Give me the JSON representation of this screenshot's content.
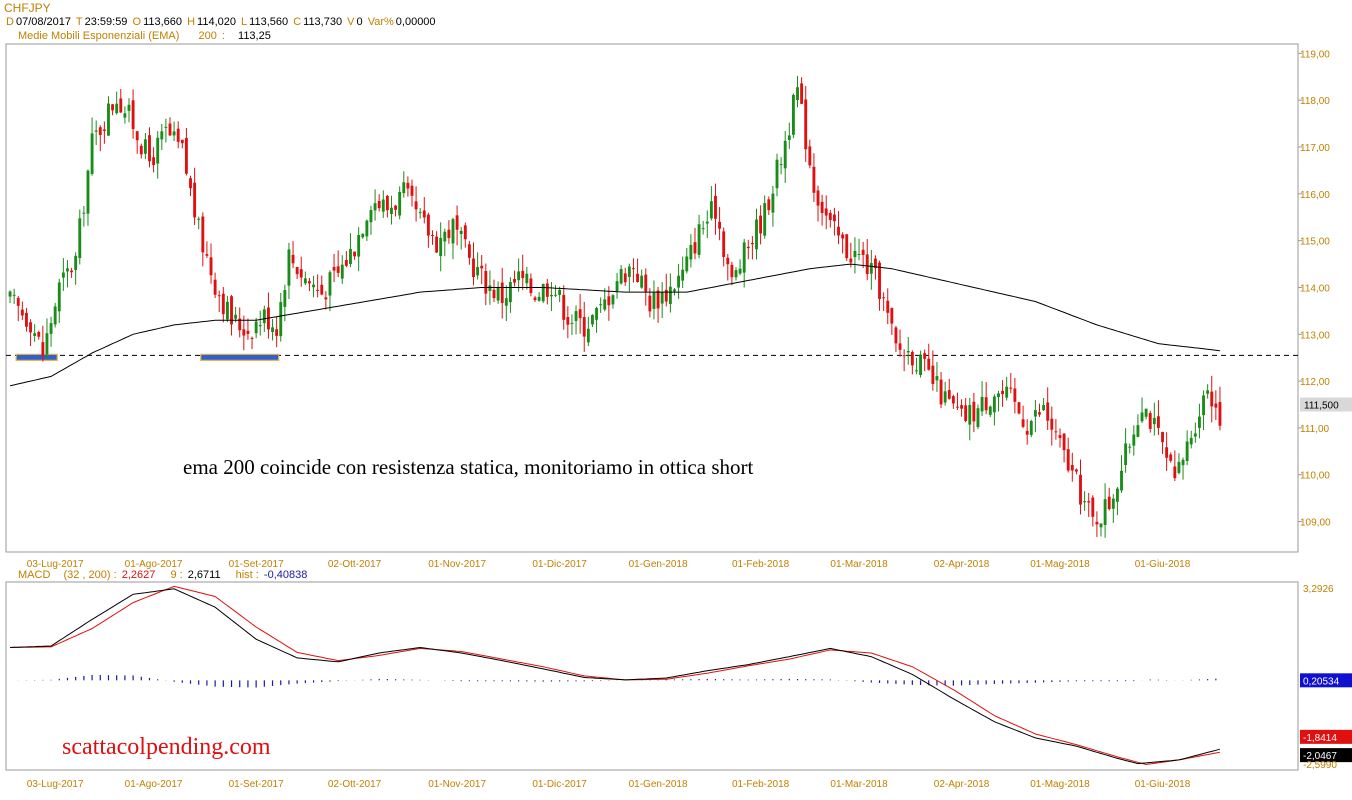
{
  "symbol": "CHFJPY",
  "ohlc_header": {
    "d_label": "D",
    "d_value": "07/08/2017",
    "t_label": "T",
    "t_value": "23:59:59",
    "o_label": "O",
    "o_value": "113,660",
    "h_label": "H",
    "h_value": "114,020",
    "l_label": "L",
    "l_value": "113,560",
    "c_label": "C",
    "c_value": "113,730",
    "v_label": "V",
    "v_value": "0",
    "var_label": "Var%",
    "var_value": "0,00000"
  },
  "ema_header": {
    "label": "Medie Mobili Esponenziali (EMA)",
    "period": "200",
    "sep": ":",
    "value": "113,25"
  },
  "macd_header": {
    "label": "MACD",
    "params": "(32 , 200) :",
    "macd_value": "2,2627",
    "signal_period": "9 :",
    "signal_value": "2,6711",
    "hist_label": "hist :",
    "hist_value": "-0,40838"
  },
  "annotations": {
    "main_note": "ema 200 coincide con resistenza statica, monitoriamo in ottica short",
    "watermark": "scattacolpending.com"
  },
  "colors": {
    "bull": "#1a8c1a",
    "bear": "#e01010",
    "ema": "#000000",
    "macd_line": "#000000",
    "signal_line": "#e01010",
    "histogram": "#1a1a9c",
    "support_box": "#3060d0",
    "support_box_edge": "#e8b040",
    "axis_text": "#c08000",
    "last_price_tag": "#d8d8d8",
    "macd_tag_blue": "#1010d0",
    "macd_tag_red": "#e01010",
    "macd_tag_black": "#000000"
  },
  "chart_data": [
    {
      "type": "candlestick",
      "title": "CHFJPY",
      "x_labels": [
        "03-Lug-2017",
        "01-Ago-2017",
        "01-Set-2017",
        "02-Ott-2017",
        "01-Nov-2017",
        "01-Dic-2017",
        "01-Gen-2018",
        "01-Feb-2018",
        "01-Mar-2018",
        "02-Apr-2018",
        "01-Mag-2018",
        "01-Giu-2018"
      ],
      "ylim": [
        108.35,
        119.2
      ],
      "y_ticks": [
        "119,00",
        "118,00",
        "117,00",
        "116,00",
        "115,00",
        "114,00",
        "113,00",
        "112,00",
        "111,00",
        "110,00",
        "109,00"
      ],
      "last_price": "111,500",
      "resistance_level": 112.55,
      "price_path": [
        {
          "t": 0,
          "p": 113.7
        },
        {
          "t": 5,
          "p": 113.3
        },
        {
          "t": 8,
          "p": 112.6
        },
        {
          "t": 12,
          "p": 114.0
        },
        {
          "t": 16,
          "p": 114.6
        },
        {
          "t": 20,
          "p": 117.1
        },
        {
          "t": 26,
          "p": 118.1
        },
        {
          "t": 30,
          "p": 117.5
        },
        {
          "t": 34,
          "p": 116.7
        },
        {
          "t": 38,
          "p": 117.3
        },
        {
          "t": 42,
          "p": 116.9
        },
        {
          "t": 46,
          "p": 115.2
        },
        {
          "t": 50,
          "p": 114.1
        },
        {
          "t": 54,
          "p": 113.3
        },
        {
          "t": 58,
          "p": 113.1
        },
        {
          "t": 62,
          "p": 113.4
        },
        {
          "t": 65,
          "p": 113.2
        },
        {
          "t": 68,
          "p": 114.7
        },
        {
          "t": 72,
          "p": 114.2
        },
        {
          "t": 76,
          "p": 113.9
        },
        {
          "t": 80,
          "p": 114.3
        },
        {
          "t": 84,
          "p": 114.9
        },
        {
          "t": 88,
          "p": 115.9
        },
        {
          "t": 92,
          "p": 115.7
        },
        {
          "t": 96,
          "p": 116.0
        },
        {
          "t": 100,
          "p": 115.4
        },
        {
          "t": 104,
          "p": 115.0
        },
        {
          "t": 108,
          "p": 115.3
        },
        {
          "t": 112,
          "p": 114.6
        },
        {
          "t": 116,
          "p": 114.1
        },
        {
          "t": 120,
          "p": 113.8
        },
        {
          "t": 124,
          "p": 114.2
        },
        {
          "t": 128,
          "p": 113.9
        },
        {
          "t": 132,
          "p": 114.1
        },
        {
          "t": 136,
          "p": 113.4
        },
        {
          "t": 140,
          "p": 113.2
        },
        {
          "t": 144,
          "p": 113.5
        },
        {
          "t": 148,
          "p": 114.2
        },
        {
          "t": 152,
          "p": 114.5
        },
        {
          "t": 156,
          "p": 113.7
        },
        {
          "t": 160,
          "p": 113.9
        },
        {
          "t": 164,
          "p": 114.3
        },
        {
          "t": 168,
          "p": 115.2
        },
        {
          "t": 172,
          "p": 115.7
        },
        {
          "t": 176,
          "p": 114.1
        },
        {
          "t": 180,
          "p": 114.9
        },
        {
          "t": 184,
          "p": 115.6
        },
        {
          "t": 188,
          "p": 116.8
        },
        {
          "t": 192,
          "p": 118.2
        },
        {
          "t": 196,
          "p": 116.2
        },
        {
          "t": 200,
          "p": 115.3
        },
        {
          "t": 204,
          "p": 114.8
        },
        {
          "t": 208,
          "p": 114.6
        },
        {
          "t": 212,
          "p": 114.0
        },
        {
          "t": 216,
          "p": 112.7
        },
        {
          "t": 220,
          "p": 112.6
        },
        {
          "t": 224,
          "p": 112.1
        },
        {
          "t": 228,
          "p": 111.6
        },
        {
          "t": 232,
          "p": 111.2
        },
        {
          "t": 236,
          "p": 111.4
        },
        {
          "t": 240,
          "p": 111.8
        },
        {
          "t": 244,
          "p": 111.6
        },
        {
          "t": 248,
          "p": 111.1
        },
        {
          "t": 252,
          "p": 111.4
        },
        {
          "t": 256,
          "p": 110.6
        },
        {
          "t": 260,
          "p": 109.8
        },
        {
          "t": 264,
          "p": 109.0
        },
        {
          "t": 268,
          "p": 109.4
        },
        {
          "t": 272,
          "p": 110.4
        },
        {
          "t": 276,
          "p": 111.6
        },
        {
          "t": 280,
          "p": 110.8
        },
        {
          "t": 284,
          "p": 109.8
        },
        {
          "t": 288,
          "p": 110.9
        },
        {
          "t": 292,
          "p": 111.9
        },
        {
          "t": 295,
          "p": 111.3
        }
      ],
      "ema_path": [
        {
          "t": 0,
          "p": 111.9
        },
        {
          "t": 10,
          "p": 112.1
        },
        {
          "t": 20,
          "p": 112.6
        },
        {
          "t": 30,
          "p": 113.0
        },
        {
          "t": 40,
          "p": 113.2
        },
        {
          "t": 50,
          "p": 113.3
        },
        {
          "t": 60,
          "p": 113.3
        },
        {
          "t": 80,
          "p": 113.6
        },
        {
          "t": 100,
          "p": 113.9
        },
        {
          "t": 115,
          "p": 114.0
        },
        {
          "t": 130,
          "p": 114.0
        },
        {
          "t": 150,
          "p": 113.9
        },
        {
          "t": 165,
          "p": 113.9
        },
        {
          "t": 180,
          "p": 114.15
        },
        {
          "t": 195,
          "p": 114.4
        },
        {
          "t": 205,
          "p": 114.5
        },
        {
          "t": 215,
          "p": 114.4
        },
        {
          "t": 230,
          "p": 114.1
        },
        {
          "t": 250,
          "p": 113.7
        },
        {
          "t": 265,
          "p": 113.2
        },
        {
          "t": 280,
          "p": 112.8
        },
        {
          "t": 295,
          "p": 112.65
        }
      ],
      "support_marks": [
        {
          "t0": 2,
          "t1": 11
        },
        {
          "t0": 47,
          "t1": 65
        }
      ]
    },
    {
      "type": "line",
      "title": "MACD",
      "ylim": [
        -2.599,
        3.2926
      ],
      "y_tags": [
        "3,2926",
        "0,20534",
        "-1,8414",
        "-2,0467",
        "-2,5990"
      ],
      "series": [
        {
          "name": "MACD",
          "path": [
            {
              "t": 0,
              "p": 1.28
            },
            {
              "t": 10,
              "p": 1.33
            },
            {
              "t": 20,
              "p": 2.2
            },
            {
              "t": 30,
              "p": 3.02
            },
            {
              "t": 40,
              "p": 3.2
            },
            {
              "t": 50,
              "p": 2.6
            },
            {
              "t": 60,
              "p": 1.55
            },
            {
              "t": 70,
              "p": 0.94
            },
            {
              "t": 80,
              "p": 0.81
            },
            {
              "t": 90,
              "p": 1.1
            },
            {
              "t": 100,
              "p": 1.28
            },
            {
              "t": 110,
              "p": 1.1
            },
            {
              "t": 120,
              "p": 0.85
            },
            {
              "t": 130,
              "p": 0.58
            },
            {
              "t": 140,
              "p": 0.3
            },
            {
              "t": 150,
              "p": 0.22
            },
            {
              "t": 160,
              "p": 0.28
            },
            {
              "t": 170,
              "p": 0.52
            },
            {
              "t": 180,
              "p": 0.72
            },
            {
              "t": 190,
              "p": 0.98
            },
            {
              "t": 200,
              "p": 1.25
            },
            {
              "t": 210,
              "p": 0.98
            },
            {
              "t": 220,
              "p": 0.4
            },
            {
              "t": 230,
              "p": -0.4
            },
            {
              "t": 240,
              "p": -1.15
            },
            {
              "t": 250,
              "p": -1.68
            },
            {
              "t": 260,
              "p": -1.95
            },
            {
              "t": 270,
              "p": -2.35
            },
            {
              "t": 275,
              "p": -2.52
            },
            {
              "t": 285,
              "p": -2.4
            },
            {
              "t": 295,
              "p": -2.05
            }
          ]
        },
        {
          "name": "Signal",
          "path": [
            {
              "t": 0,
              "p": 1.28
            },
            {
              "t": 10,
              "p": 1.3
            },
            {
              "t": 20,
              "p": 1.9
            },
            {
              "t": 30,
              "p": 2.75
            },
            {
              "t": 40,
              "p": 3.28
            },
            {
              "t": 50,
              "p": 2.95
            },
            {
              "t": 60,
              "p": 1.95
            },
            {
              "t": 70,
              "p": 1.12
            },
            {
              "t": 80,
              "p": 0.85
            },
            {
              "t": 90,
              "p": 1.02
            },
            {
              "t": 100,
              "p": 1.25
            },
            {
              "t": 110,
              "p": 1.15
            },
            {
              "t": 120,
              "p": 0.9
            },
            {
              "t": 130,
              "p": 0.65
            },
            {
              "t": 140,
              "p": 0.35
            },
            {
              "t": 150,
              "p": 0.22
            },
            {
              "t": 160,
              "p": 0.24
            },
            {
              "t": 170,
              "p": 0.44
            },
            {
              "t": 180,
              "p": 0.68
            },
            {
              "t": 190,
              "p": 0.9
            },
            {
              "t": 200,
              "p": 1.2
            },
            {
              "t": 210,
              "p": 1.1
            },
            {
              "t": 220,
              "p": 0.65
            },
            {
              "t": 230,
              "p": -0.1
            },
            {
              "t": 240,
              "p": -0.95
            },
            {
              "t": 250,
              "p": -1.55
            },
            {
              "t": 260,
              "p": -1.9
            },
            {
              "t": 270,
              "p": -2.3
            },
            {
              "t": 277,
              "p": -2.55
            },
            {
              "t": 285,
              "p": -2.4
            },
            {
              "t": 295,
              "p": -2.15
            }
          ]
        }
      ],
      "histogram_zero": 0.205
    }
  ]
}
